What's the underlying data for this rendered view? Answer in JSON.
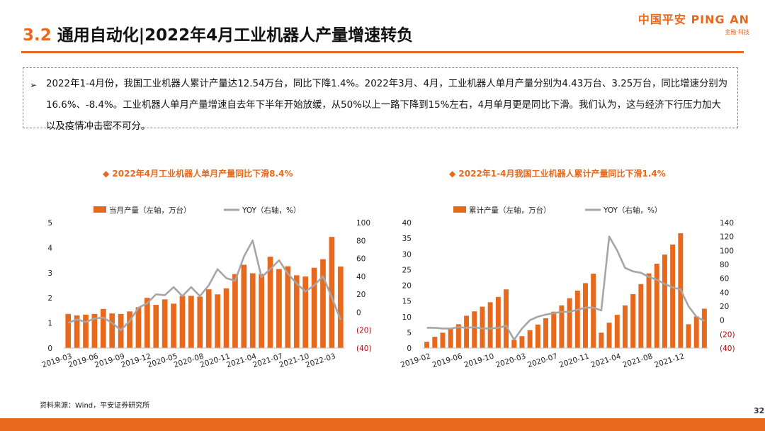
{
  "header": {
    "title_num": "3.2",
    "title_text": "通用自动化|2022年4月工业机器人产量增速转负",
    "logo_main": "中国平安 PING AN",
    "logo_sub": "金融·科技"
  },
  "summary": {
    "bullet": "➢",
    "text": "2022年1-4月份，我国工业机器人累计产量达12.54万台，同比下降1.4%。2022年3月、4月，工业机器人单月产量分别为4.43万台、3.25万台，同比增速分别为16.6%、-8.4%。工业机器人单月产量增速自去年下半年开始放缓，从50%以上一路下降到15%左右，4月单月更是同比下滑。我们认为，这与经济下行压力加大以及疫情冲击密不可分。"
  },
  "footer": {
    "source": "资料来源：Wind，平安证券研究所",
    "page": "32"
  },
  "colors": {
    "accent": "#e8681c",
    "bar": "#e8681c",
    "line": "#a6a6a6"
  },
  "chart_data": [
    {
      "type": "bar",
      "title": "◆ 2022年4月工业机器人单月产量同比下滑8.4%",
      "legend_position": "top",
      "grid": false,
      "x_tick_labels": [
        "2019-03",
        "2019-06",
        "2019-09",
        "2019-12",
        "2020-05",
        "2020-08",
        "2020-11",
        "2021-04",
        "2021-07",
        "2021-10",
        "2022-03"
      ],
      "left_ticks": [
        "0",
        "1",
        "2",
        "3",
        "4",
        "5"
      ],
      "right_ticks": [
        "(40)",
        "(20)",
        "0",
        "20",
        "40",
        "60",
        "80",
        "100"
      ],
      "ylim_left": [
        0,
        5
      ],
      "ylim_right": [
        -40,
        100
      ],
      "series": [
        {
          "name": "当月产量（左轴，万台）",
          "type": "bar",
          "axis": "left",
          "x": [
            "2019-03",
            "2019-04",
            "2019-05",
            "2019-06",
            "2019-07",
            "2019-08",
            "2019-09",
            "2019-10",
            "2019-11",
            "2019-12",
            "2020-03",
            "2020-04",
            "2020-05",
            "2020-06",
            "2020-07",
            "2020-08",
            "2020-09",
            "2020-10",
            "2020-11",
            "2020-12",
            "2021-03",
            "2021-04",
            "2021-05",
            "2021-06",
            "2021-07",
            "2021-08",
            "2021-09",
            "2021-10",
            "2021-11",
            "2021-12",
            "2022-03",
            "2022-04"
          ],
          "values": [
            1.36,
            1.3,
            1.33,
            1.36,
            1.56,
            1.38,
            1.36,
            1.46,
            1.63,
            2.0,
            1.72,
            1.94,
            1.77,
            2.08,
            2.08,
            2.05,
            2.34,
            2.14,
            2.38,
            2.95,
            3.32,
            2.98,
            2.95,
            3.64,
            3.15,
            3.26,
            2.9,
            2.85,
            3.2,
            3.54,
            4.43,
            3.25
          ]
        },
        {
          "name": "YOY（右轴，%）",
          "type": "line",
          "axis": "right",
          "x": [
            "2019-03",
            "2019-04",
            "2019-05",
            "2019-06",
            "2019-07",
            "2019-08",
            "2019-09",
            "2019-10",
            "2019-11",
            "2019-12",
            "2020-03",
            "2020-04",
            "2020-05",
            "2020-06",
            "2020-07",
            "2020-08",
            "2020-09",
            "2020-10",
            "2020-11",
            "2020-12",
            "2021-03",
            "2021-04",
            "2021-05",
            "2021-06",
            "2021-07",
            "2021-08",
            "2021-09",
            "2021-10",
            "2021-11",
            "2021-12",
            "2022-03",
            "2022-04"
          ],
          "values": [
            -12,
            -8,
            -11,
            -7,
            -6,
            -12,
            -20,
            -10,
            5,
            10,
            20,
            19,
            28,
            18,
            28,
            18,
            30,
            48,
            38,
            35,
            62,
            80,
            39,
            48,
            58,
            43,
            32,
            23,
            30,
            40,
            16.6,
            -8.4
          ]
        }
      ]
    },
    {
      "type": "bar",
      "title": "◆ 2022年1-4月我国工业机器人累计产量同比下滑1.4%",
      "legend_position": "top",
      "grid": false,
      "x_tick_labels": [
        "2019-02",
        "2019-06",
        "2019-10",
        "2020-03",
        "2020-07",
        "2020-11",
        "2021-04",
        "2021-08",
        "2021-12"
      ],
      "left_ticks": [
        "0",
        "5",
        "10",
        "15",
        "20",
        "25",
        "30",
        "35",
        "40"
      ],
      "right_ticks": [
        "(40)",
        "(20)",
        "0",
        "20",
        "40",
        "60",
        "80",
        "100",
        "120",
        "140"
      ],
      "ylim_left": [
        0,
        40
      ],
      "ylim_right": [
        -40,
        140
      ],
      "series": [
        {
          "name": "累计产量（左轴，万台）",
          "type": "bar",
          "axis": "left",
          "x": [
            "2019-02",
            "2019-03",
            "2019-04",
            "2019-05",
            "2019-06",
            "2019-07",
            "2019-08",
            "2019-09",
            "2019-10",
            "2019-11",
            "2019-12",
            "2020-02",
            "2020-03",
            "2020-04",
            "2020-05",
            "2020-06",
            "2020-07",
            "2020-08",
            "2020-09",
            "2020-10",
            "2020-11",
            "2020-12",
            "2021-02",
            "2021-03",
            "2021-04",
            "2021-05",
            "2021-06",
            "2021-07",
            "2021-08",
            "2021-09",
            "2021-10",
            "2021-11",
            "2021-12",
            "2022-02",
            "2022-03",
            "2022-04"
          ],
          "values": [
            2.0,
            3.6,
            4.9,
            6.2,
            7.6,
            10.3,
            11.7,
            13.2,
            14.6,
            16.3,
            18.7,
            2.6,
            3.8,
            5.7,
            7.5,
            9.5,
            11.6,
            13.6,
            15.9,
            18.3,
            20.7,
            23.7,
            4.9,
            8.1,
            10.6,
            13.6,
            17.2,
            20.4,
            23.8,
            26.9,
            29.8,
            33.0,
            36.6,
            7.6,
            10.1,
            12.54
          ]
        },
        {
          "name": "YOY（右轴，%）",
          "type": "line",
          "axis": "right",
          "x": [
            "2019-02",
            "2019-03",
            "2019-04",
            "2019-05",
            "2019-06",
            "2019-07",
            "2019-08",
            "2019-09",
            "2019-10",
            "2019-11",
            "2019-12",
            "2020-02",
            "2020-03",
            "2020-04",
            "2020-05",
            "2020-06",
            "2020-07",
            "2020-08",
            "2020-09",
            "2020-10",
            "2020-11",
            "2020-12",
            "2021-02",
            "2021-03",
            "2021-04",
            "2021-05",
            "2021-06",
            "2021-07",
            "2021-08",
            "2021-09",
            "2021-10",
            "2021-11",
            "2021-12",
            "2022-02",
            "2022-03",
            "2022-04"
          ],
          "values": [
            -11,
            -11,
            -12,
            -12,
            -10,
            -11,
            -10,
            -12,
            -12,
            -11,
            -8,
            -28,
            -12,
            0,
            5,
            8,
            10,
            12,
            12,
            15,
            18,
            18,
            14,
            120,
            100,
            75,
            70,
            68,
            62,
            58,
            52,
            47,
            44,
            20,
            5,
            -1.4
          ]
        }
      ]
    }
  ]
}
